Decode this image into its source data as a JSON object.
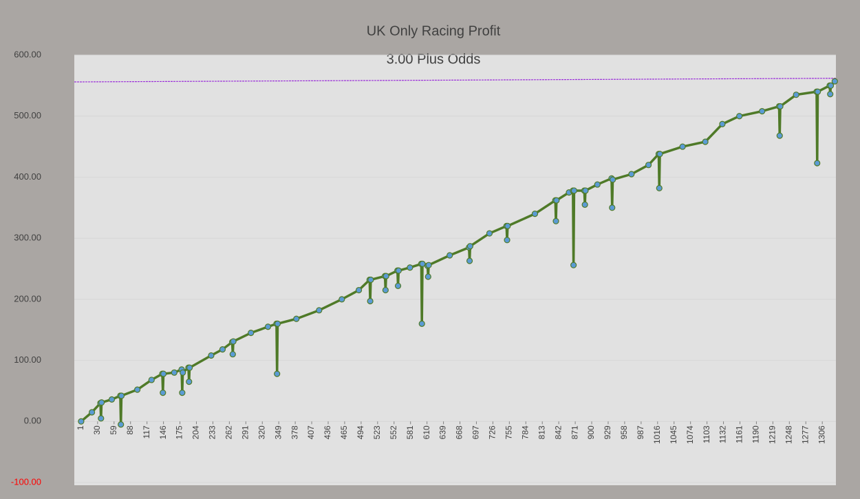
{
  "chart_data": {
    "type": "line",
    "title": "UK Only Racing Profit",
    "subtitle": "3.00 Plus Odds",
    "x": [
      1,
      20,
      35,
      36,
      37,
      55,
      70,
      71,
      72,
      100,
      125,
      144,
      145,
      146,
      165,
      178,
      179,
      180,
      190,
      191,
      192,
      230,
      250,
      267,
      268,
      269,
      300,
      330,
      345,
      346,
      347,
      380,
      420,
      460,
      490,
      509,
      510,
      511,
      536,
      537,
      538,
      558,
      559,
      560,
      580,
      600,
      601,
      602,
      611,
      612,
      613,
      650,
      684,
      685,
      686,
      720,
      750,
      751,
      752,
      800,
      836,
      837,
      838,
      860,
      867,
      868,
      869,
      887,
      888,
      889,
      910,
      935,
      936,
      937,
      970,
      1000,
      1018,
      1019,
      1020,
      1060,
      1100,
      1130,
      1160,
      1200,
      1230,
      1231,
      1232,
      1260,
      1296,
      1297,
      1298,
      1319,
      1320,
      1321,
      1328
    ],
    "series": [
      {
        "color": "#4f7a28",
        "marker_color": "#5b9bd5",
        "values": [
          0,
          15,
          30,
          5,
          31,
          36,
          42,
          -5,
          42,
          52,
          68,
          78,
          47,
          78,
          80,
          85,
          47,
          80,
          88,
          65,
          88,
          108,
          118,
          130,
          110,
          131,
          145,
          155,
          160,
          78,
          160,
          168,
          182,
          200,
          215,
          232,
          197,
          232,
          238,
          215,
          238,
          247,
          222,
          247,
          252,
          258,
          160,
          258,
          255,
          237,
          256,
          272,
          285,
          263,
          287,
          308,
          320,
          297,
          320,
          340,
          362,
          328,
          362,
          375,
          378,
          256,
          378,
          378,
          355,
          378,
          388,
          398,
          350,
          396,
          405,
          420,
          438,
          382,
          438,
          450,
          458,
          487,
          500,
          508,
          516,
          468,
          516,
          535,
          540,
          423,
          540,
          550,
          536,
          550,
          557
        ]
      }
    ],
    "reference_line": {
      "x": [
        -11,
        1330
      ],
      "values": [
        556,
        562
      ],
      "color": "#9b30d9"
    },
    "xlim": [
      -11,
      1330
    ],
    "xticks": [
      1,
      30,
      59,
      88,
      117,
      146,
      175,
      204,
      233,
      262,
      291,
      320,
      349,
      378,
      407,
      436,
      465,
      494,
      523,
      552,
      581,
      610,
      639,
      668,
      697,
      726,
      755,
      784,
      813,
      842,
      871,
      900,
      929,
      958,
      987,
      1016,
      1045,
      1074,
      1103,
      1132,
      1161,
      1190,
      1219,
      1248,
      1277,
      1306
    ],
    "ylim": [
      -100,
      600
    ],
    "yticks": [
      {
        "value": -100,
        "label": "-100.00"
      },
      {
        "value": 0,
        "label": "0.00"
      },
      {
        "value": 100,
        "label": "100.00"
      },
      {
        "value": 200,
        "label": "200.00"
      },
      {
        "value": 300,
        "label": "300.00"
      },
      {
        "value": 400,
        "label": "400.00"
      },
      {
        "value": 500,
        "label": "500.00"
      },
      {
        "value": 600,
        "label": "600.00"
      }
    ],
    "negative_tick_color": "#ff0000",
    "grid": true
  }
}
